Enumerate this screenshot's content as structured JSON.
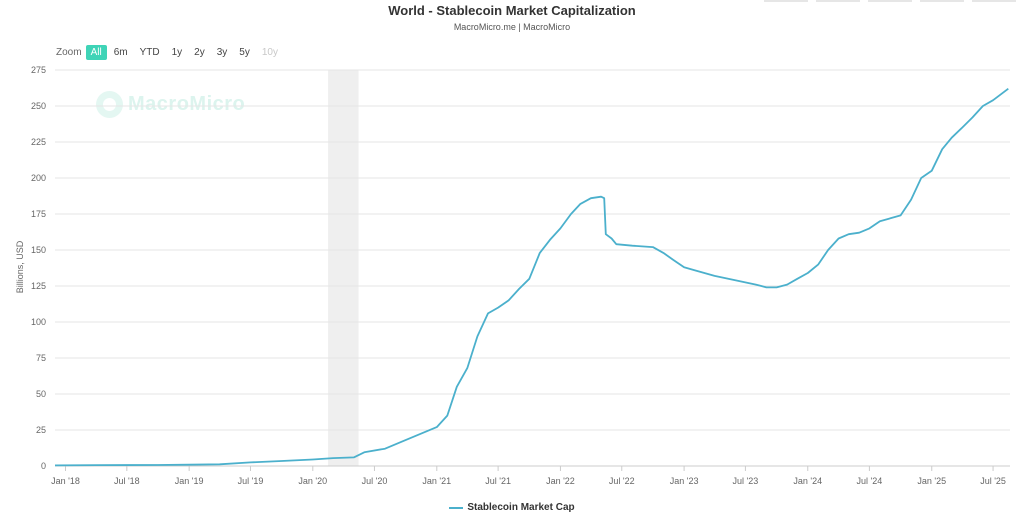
{
  "header": {
    "title": "World - Stablecoin Market Capitalization",
    "subtitle": "MacroMicro.me | MacroMicro"
  },
  "watermark": "MacroMicro",
  "zoom": {
    "label": "Zoom",
    "buttons": [
      "All",
      "6m",
      "YTD",
      "1y",
      "2y",
      "3y",
      "5y",
      "10y"
    ],
    "active": "All",
    "disabled": [
      "10y"
    ]
  },
  "colors": {
    "line": "#4bb0cc",
    "recession": "#efefef",
    "grid": "#e6e6e6",
    "zoom_active": "#3fd4b7"
  },
  "chart_data": {
    "type": "line",
    "title": "World - Stablecoin Market Capitalization",
    "subtitle": "MacroMicro.me | MacroMicro",
    "ylabel": "Billions, USD",
    "xlabel": "",
    "ylim": [
      0,
      275
    ],
    "yticks": [
      0,
      25,
      50,
      75,
      100,
      125,
      150,
      175,
      200,
      225,
      250,
      275
    ],
    "xlim": [
      "2017-12-01",
      "2025-08-20"
    ],
    "xticks": [
      {
        "date": "2018-01-01",
        "label": "Jan '18"
      },
      {
        "date": "2018-07-01",
        "label": "Jul '18"
      },
      {
        "date": "2019-01-01",
        "label": "Jan '19"
      },
      {
        "date": "2019-07-01",
        "label": "Jul '19"
      },
      {
        "date": "2020-01-01",
        "label": "Jan '20"
      },
      {
        "date": "2020-07-01",
        "label": "Jul '20"
      },
      {
        "date": "2021-01-01",
        "label": "Jan '21"
      },
      {
        "date": "2021-07-01",
        "label": "Jul '21"
      },
      {
        "date": "2022-01-01",
        "label": "Jan '22"
      },
      {
        "date": "2022-07-01",
        "label": "Jul '22"
      },
      {
        "date": "2023-01-01",
        "label": "Jan '23"
      },
      {
        "date": "2023-07-01",
        "label": "Jul '23"
      },
      {
        "date": "2024-01-01",
        "label": "Jan '24"
      },
      {
        "date": "2024-07-01",
        "label": "Jul '24"
      },
      {
        "date": "2025-01-01",
        "label": "Jan '25"
      },
      {
        "date": "2025-07-01",
        "label": "Jul '25"
      }
    ],
    "grid": true,
    "legend_position": "bottom-center",
    "shaded_periods": [
      {
        "start": "2020-02-15",
        "end": "2020-05-15"
      }
    ],
    "series": [
      {
        "name": "Stablecoin Market Cap",
        "points": [
          [
            "2017-12-01",
            0.4
          ],
          [
            "2018-04-01",
            0.6
          ],
          [
            "2018-10-01",
            0.7
          ],
          [
            "2019-01-01",
            0.9
          ],
          [
            "2019-04-01",
            1.2
          ],
          [
            "2019-07-01",
            2.5
          ],
          [
            "2019-10-01",
            3.5
          ],
          [
            "2020-01-01",
            4.5
          ],
          [
            "2020-03-01",
            5.5
          ],
          [
            "2020-05-01",
            6.0
          ],
          [
            "2020-06-01",
            9.5
          ],
          [
            "2020-08-01",
            12
          ],
          [
            "2020-10-01",
            18
          ],
          [
            "2020-12-01",
            24
          ],
          [
            "2021-01-01",
            27
          ],
          [
            "2021-02-01",
            35
          ],
          [
            "2021-03-01",
            55
          ],
          [
            "2021-04-01",
            68
          ],
          [
            "2021-05-01",
            90
          ],
          [
            "2021-06-01",
            106
          ],
          [
            "2021-07-01",
            110
          ],
          [
            "2021-08-01",
            115
          ],
          [
            "2021-09-01",
            123
          ],
          [
            "2021-10-01",
            130
          ],
          [
            "2021-11-01",
            148
          ],
          [
            "2021-12-01",
            157
          ],
          [
            "2022-01-01",
            165
          ],
          [
            "2022-02-01",
            175
          ],
          [
            "2022-03-01",
            182
          ],
          [
            "2022-04-01",
            186
          ],
          [
            "2022-05-01",
            187
          ],
          [
            "2022-05-10",
            186
          ],
          [
            "2022-05-15",
            161
          ],
          [
            "2022-06-01",
            158
          ],
          [
            "2022-06-15",
            154
          ],
          [
            "2022-08-01",
            153
          ],
          [
            "2022-10-01",
            152
          ],
          [
            "2022-11-01",
            148
          ],
          [
            "2022-12-01",
            143
          ],
          [
            "2023-01-01",
            138
          ],
          [
            "2023-02-01",
            136
          ],
          [
            "2023-04-01",
            132
          ],
          [
            "2023-06-01",
            129
          ],
          [
            "2023-08-01",
            126
          ],
          [
            "2023-09-01",
            124
          ],
          [
            "2023-10-01",
            124
          ],
          [
            "2023-11-01",
            126
          ],
          [
            "2023-12-01",
            130
          ],
          [
            "2024-01-01",
            134
          ],
          [
            "2024-02-01",
            140
          ],
          [
            "2024-03-01",
            150
          ],
          [
            "2024-04-01",
            158
          ],
          [
            "2024-05-01",
            161
          ],
          [
            "2024-06-01",
            162
          ],
          [
            "2024-07-01",
            165
          ],
          [
            "2024-08-01",
            170
          ],
          [
            "2024-09-01",
            172
          ],
          [
            "2024-10-01",
            174
          ],
          [
            "2024-11-01",
            185
          ],
          [
            "2024-12-01",
            200
          ],
          [
            "2025-01-01",
            205
          ],
          [
            "2025-02-01",
            220
          ],
          [
            "2025-03-01",
            228
          ],
          [
            "2025-04-01",
            235
          ],
          [
            "2025-05-01",
            242
          ],
          [
            "2025-06-01",
            250
          ],
          [
            "2025-07-01",
            254
          ],
          [
            "2025-08-15",
            262
          ]
        ]
      }
    ]
  }
}
